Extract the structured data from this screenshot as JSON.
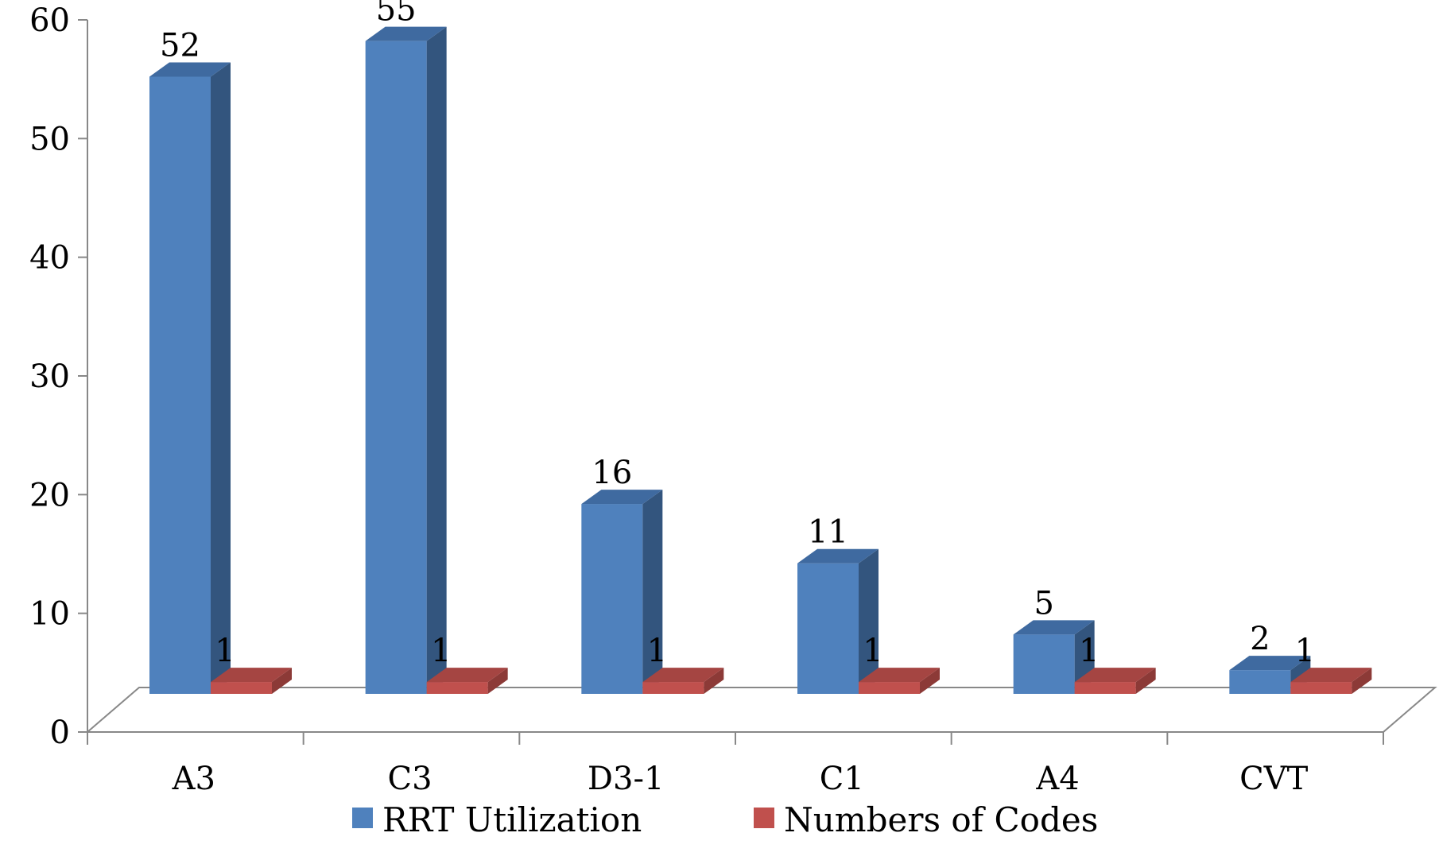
{
  "chart_data": {
    "type": "bar",
    "title": "",
    "xlabel": "",
    "ylabel": "",
    "categories": [
      "A3",
      "C3",
      "D3-1",
      "C1",
      "A4",
      "CVT"
    ],
    "series": [
      {
        "name": "RRT Utilization",
        "values": [
          52,
          55,
          16,
          11,
          5,
          2
        ]
      },
      {
        "name": "Numbers of Codes",
        "values": [
          1,
          1,
          1,
          1,
          1,
          1
        ]
      }
    ],
    "ylim": [
      0,
      60
    ],
    "yticks": [
      0,
      10,
      20,
      30,
      40,
      50,
      60
    ],
    "grid": false,
    "three_d": true,
    "legend_position": "bottom",
    "colors": {
      "RRT Utilization": {
        "front": "#4f81bd",
        "side": "#33557e",
        "top": "#3f6aa0"
      },
      "Numbers of Codes": {
        "front": "#c0504d",
        "side": "#8c3a37",
        "top": "#a54542"
      },
      "axis": "#888888"
    }
  }
}
